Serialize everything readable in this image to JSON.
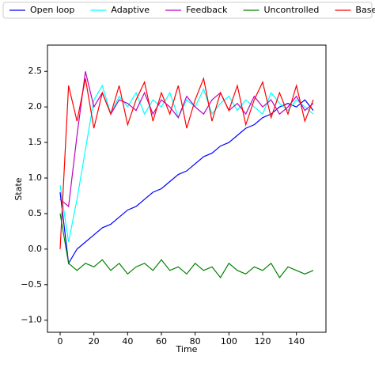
{
  "chart_data": {
    "type": "line",
    "xlabel": "Time",
    "ylabel": "State",
    "x": [
      0,
      5,
      10,
      15,
      20,
      25,
      30,
      35,
      40,
      45,
      50,
      55,
      60,
      65,
      70,
      75,
      80,
      85,
      90,
      95,
      100,
      105,
      110,
      115,
      120,
      125,
      130,
      135,
      140,
      145,
      150
    ],
    "series": [
      {
        "name": "Open loop",
        "color": "#0000ff",
        "values": [
          0.8,
          -0.2,
          0.0,
          0.1,
          0.2,
          0.3,
          0.35,
          0.45,
          0.55,
          0.6,
          0.7,
          0.8,
          0.85,
          0.95,
          1.05,
          1.1,
          1.2,
          1.3,
          1.35,
          1.45,
          1.5,
          1.6,
          1.7,
          1.75,
          1.85,
          1.9,
          2.0,
          2.05,
          2.0,
          2.1,
          1.95
        ]
      },
      {
        "name": "Adaptive",
        "color": "#00ffff",
        "values": [
          0.9,
          0.1,
          0.7,
          1.4,
          2.1,
          2.3,
          1.9,
          2.15,
          2.0,
          2.2,
          1.9,
          2.1,
          2.0,
          2.2,
          1.85,
          2.1,
          2.0,
          2.25,
          1.9,
          2.05,
          2.15,
          1.95,
          2.1,
          2.0,
          1.9,
          2.2,
          2.05,
          1.95,
          2.1,
          2.0,
          1.9
        ]
      },
      {
        "name": "Feedback",
        "color": "#bf00bf",
        "values": [
          0.7,
          0.6,
          1.6,
          2.5,
          2.0,
          2.2,
          1.9,
          2.1,
          2.05,
          1.95,
          2.2,
          1.9,
          2.1,
          2.0,
          1.85,
          2.15,
          2.0,
          1.9,
          2.1,
          2.2,
          1.95,
          2.05,
          1.9,
          2.15,
          2.0,
          2.1,
          1.9,
          2.0,
          2.15,
          1.95,
          2.05
        ]
      },
      {
        "name": "Uncontrolled",
        "color": "#008000",
        "values": [
          0.5,
          -0.2,
          -0.3,
          -0.2,
          -0.25,
          -0.15,
          -0.3,
          -0.2,
          -0.35,
          -0.25,
          -0.2,
          -0.3,
          -0.15,
          -0.3,
          -0.25,
          -0.35,
          -0.2,
          -0.3,
          -0.25,
          -0.4,
          -0.2,
          -0.3,
          -0.35,
          -0.25,
          -0.3,
          -0.2,
          -0.4,
          -0.25,
          -0.3,
          -0.35,
          -0.3
        ]
      },
      {
        "name": "Baseline",
        "color": "#ff0000",
        "values": [
          0.0,
          2.3,
          1.8,
          2.4,
          1.7,
          2.2,
          1.9,
          2.3,
          1.75,
          2.1,
          2.35,
          1.8,
          2.2,
          1.9,
          2.3,
          1.7,
          2.1,
          2.4,
          1.8,
          2.2,
          1.95,
          2.3,
          1.75,
          2.1,
          2.35,
          1.85,
          2.2,
          1.9,
          2.3,
          1.8,
          2.1
        ]
      }
    ],
    "xlim": [
      -7.5,
      157.5
    ],
    "ylim": [
      -1.17,
      2.87
    ],
    "xticks": [
      0,
      20,
      40,
      60,
      80,
      100,
      120,
      140
    ],
    "yticks": [
      {
        "value": -1.0,
        "label": "−1.0"
      },
      {
        "value": -0.5,
        "label": "−0.5"
      },
      {
        "value": 0.0,
        "label": "0.0"
      },
      0.5,
      {
        "value": 1.0,
        "label": "1.0"
      },
      1.5,
      {
        "value": 2.0,
        "label": "2.0"
      },
      2.5
    ],
    "legend": "top"
  }
}
